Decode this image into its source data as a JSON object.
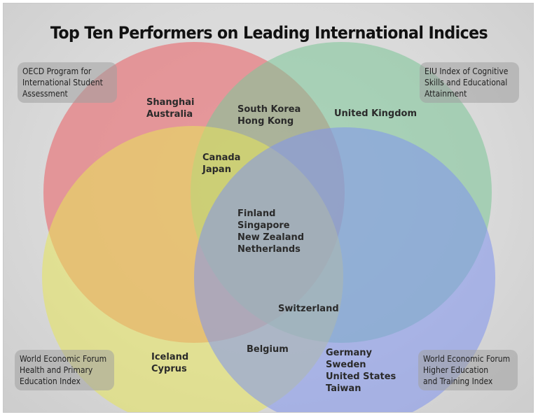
{
  "title": "Top Ten Performers on Leading International Indices",
  "sets": [
    {
      "id": "oecd",
      "label_lines": [
        "OECD Program for",
        "International Student",
        "Assessment"
      ],
      "color": "#e86a6f"
    },
    {
      "id": "eiu",
      "label_lines": [
        "EIU Index of Cognitive",
        "Skills and Educational",
        "Attainment"
      ],
      "color": "#7fc79a"
    },
    {
      "id": "wef-health",
      "label_lines": [
        "World Economic Forum",
        "Health and Primary",
        "Education Index"
      ],
      "color": "#e8e55a"
    },
    {
      "id": "wef-higher",
      "label_lines": [
        "World Economic Forum",
        "Higher Education",
        "and Training Index"
      ],
      "color": "#7f93ef"
    }
  ],
  "regions": {
    "oecd_only": [
      "Shanghai",
      "Australia"
    ],
    "oecd_eiu": [
      "South Korea",
      "Hong Kong"
    ],
    "eiu_only": [
      "United Kingdom"
    ],
    "oecd_eiu_health": [
      "Canada",
      "Japan"
    ],
    "all_four": [
      "Finland",
      "Singapore",
      "New Zealand",
      "Netherlands"
    ],
    "eiu_health_higher": [
      "Switzerland"
    ],
    "health_higher": [
      "Belgium"
    ],
    "health_only": [
      "Iceland",
      "Cyprus"
    ],
    "higher_only": [
      "Germany",
      "Sweden",
      "United States",
      "Taiwan"
    ]
  }
}
